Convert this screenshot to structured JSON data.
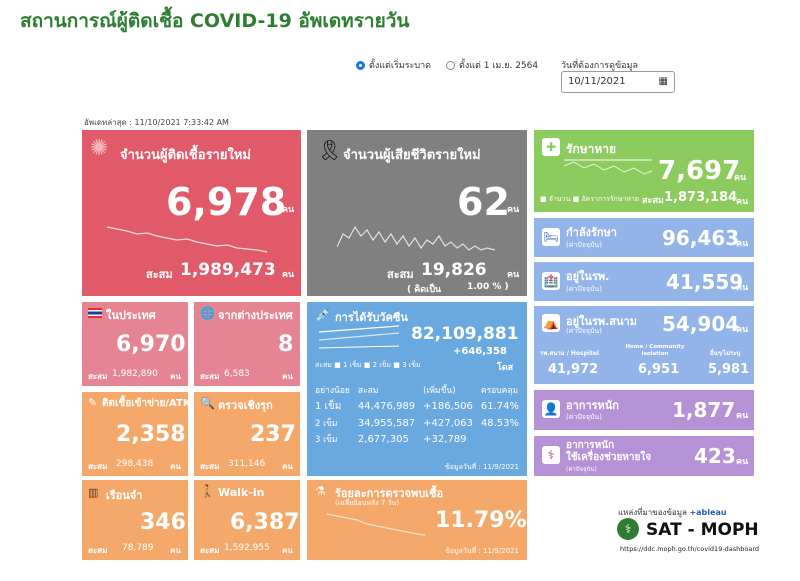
{
  "title": "สถานการณ์ผู้ติดเชื้อ COVID-19 อัพเดทรายวัน",
  "filters": {
    "option1": "ตั้งแต่เริ่มระบาด",
    "option2": "ตั้งแต่ 1 เม.ย. 2564",
    "date_label": "วันที่ต้องการดูข้อมูล",
    "date_value": "10/11/2021"
  },
  "last_update": "อัพเดทล่าสุด : 11/10/2021 7:33:42 AM",
  "new_cases": {
    "label": "จำนวนผู้ติดเชื้อรายใหม่",
    "value": "6,978",
    "unit": "คน",
    "total_label": "สะสม",
    "total": "1,989,473",
    "total_unit": "คน"
  },
  "deaths": {
    "label": "จำนวนผู้เสียชีวิตรายใหม่",
    "value": "62",
    "unit": "คน",
    "total_label": "สะสม",
    "total": "19,826",
    "total_unit": "คน",
    "pct_label": "( คิดเป็น",
    "pct": "1.00 % )"
  },
  "recovered": {
    "label": "รักษาหาย",
    "value": "7,697",
    "unit": "คน",
    "legend1": "จำนวน",
    "legend2": "อัตราการรักษาหาย",
    "total_label": "สะสม",
    "total": "1,873,184",
    "total_unit": "คน"
  },
  "treating": {
    "label": "กำลังรักษา",
    "sublabel": "(ค่าปัจจุบัน)",
    "value": "96,463",
    "unit": "คน"
  },
  "hospital": {
    "label": "อยู่ในรพ.",
    "sublabel": "(ค่าปัจจุบัน)",
    "value": "41,559",
    "unit": "คน"
  },
  "field_hospital": {
    "label": "อยู่ในรพ.สนาม",
    "sublabel": "(ค่าปัจจุบัน)",
    "value": "54,904",
    "unit": "คน",
    "col1_label": "รพ.สนาม / Hospitel",
    "col1": "41,972",
    "col2_label": "Home / Community Isolation",
    "col2": "6,951",
    "col3_label": "อื่นๆ/ไม่ระบุ",
    "col3": "5,981"
  },
  "severe": {
    "label": "อาการหนัก",
    "sublabel": "(ค่าปัจจุบัน)",
    "value": "1,877",
    "unit": "คน"
  },
  "ventilator": {
    "label": "อาการหนัก",
    "label2": "ใช้เครื่องช่วยหายใจ",
    "sublabel": "(ค่าปัจจุบัน)",
    "value": "423",
    "unit": "คน"
  },
  "domestic": {
    "label": "ในประเทศ",
    "value": "6,970",
    "total_label": "สะสม",
    "total": "1,982,890",
    "unit": "คน"
  },
  "abroad": {
    "label": "จากต่างประเทศ",
    "value": "8",
    "total_label": "สะสม",
    "total": "6,583",
    "unit": "คน"
  },
  "prison_atk": {
    "label": "ติดเชื้อเข้าข่าย/ATK",
    "value": "2,358",
    "total_label": "สะสม",
    "total": "298,438",
    "unit": "คน"
  },
  "proactive": {
    "label": "ตรวจเชิงรุก",
    "value": "237",
    "total_label": "สะสม",
    "total": "311,146",
    "unit": "คน"
  },
  "prison": {
    "label": "เรือนจำ",
    "value": "346",
    "total_label": "สะสม",
    "total": "78,789",
    "unit": "คน"
  },
  "walkin": {
    "label": "Walk-in",
    "value": "6,387",
    "total_label": "สะสม",
    "total": "1,592,955",
    "unit": "คน"
  },
  "vaccine": {
    "label": "การได้รับวัคซีน",
    "total": "82,109,881",
    "delta": "+646,358",
    "unit": "โดส",
    "legend": [
      "1 เข็ม",
      "2 เข็ม",
      "3 เข็ม"
    ],
    "headers": [
      "อย่างน้อย",
      "สะสม",
      "(เพิ่มขึ้น)",
      "ครอบคลุม"
    ],
    "rows": [
      [
        "1 เข็ม",
        "44,476,989",
        "+186,506",
        "61.74%"
      ],
      [
        "2 เข็ม",
        "34,955,587",
        "+427,063",
        "48.53%"
      ],
      [
        "3 เข็ม",
        "2,677,305",
        "+32,789",
        ""
      ]
    ],
    "data_date": "ข้อมูลวันที่ : 11/9/2021"
  },
  "positive_rate": {
    "label": "ร้อยละการตรวจพบเชื้อ",
    "sublabel": "(เฉลี่ยย้อนหลัง 7 วัน)",
    "value": "11.79%",
    "data_date": "ข้อมูลวันที่ : 11/9/2021"
  },
  "source": {
    "label": "แหล่งที่มาของข้อมูล",
    "tableau": "+ableau",
    "org": "SAT - MOPH",
    "url": "https://ddc.moph.go.th/covid19-dashboard"
  },
  "colors": {
    "red": "#e05a6a",
    "gray": "#808080",
    "green": "#8ccb5e",
    "blue": "#6aa8e0",
    "orange": "#f4a86a"
  }
}
